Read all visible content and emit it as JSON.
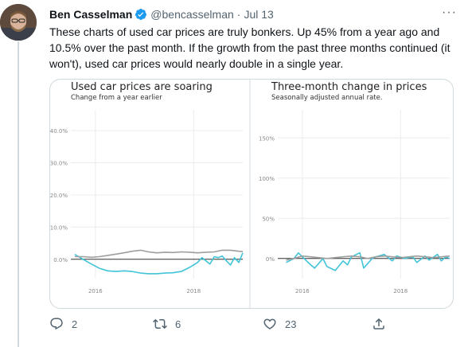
{
  "tweet": {
    "author_name": "Ben Casselman",
    "handle": "@bencasselman",
    "separator": "·",
    "time": "Jul 13",
    "text": "These charts of used car prices are truly bonkers. Up 45% from a year ago and 10.5% over the past month. If the growth from the past three months continued (it won't), used car prices would nearly double in a single year.",
    "more_label": "···"
  },
  "actions": {
    "reply_count": "2",
    "retweet_count": "6",
    "like_count": "23"
  },
  "colors": {
    "accent": "#1d9bf0",
    "series_primary": "#41c4d8",
    "series_baseline": "#9e9e9e",
    "text_muted": "#536471"
  },
  "icons": [
    "verified-badge-icon",
    "more-icon",
    "reply-icon",
    "retweet-icon",
    "like-icon",
    "share-icon"
  ],
  "chart_data": [
    {
      "type": "line",
      "title": "Used car prices are soaring",
      "subtitle": "Change from a year earlier",
      "y_tick_labels": [
        "40.0%",
        "30.0%",
        "20.0%",
        "10.0%",
        "0.0%"
      ],
      "x_tick_labels": [
        "2016",
        "2018"
      ],
      "xlim": [
        2015.5,
        2019.0
      ],
      "ylim": [
        -6,
        44
      ],
      "y_ticks": [
        40,
        30,
        20,
        10,
        0
      ],
      "x_ticks": [
        2016,
        2018
      ],
      "grid": true,
      "series": [
        {
          "color": "#41c4d8",
          "x": [
            2015.58,
            2015.75,
            2015.92,
            2016.08,
            2016.25,
            2016.42,
            2016.58,
            2016.75,
            2016.92,
            2017.08,
            2017.25,
            2017.42,
            2017.58,
            2017.75,
            2017.92,
            2018.08,
            2018.17,
            2018.25,
            2018.33,
            2018.42,
            2018.5,
            2018.58,
            2018.67,
            2018.75,
            2018.83,
            2018.92,
            2019.0
          ],
          "y": [
            1.5,
            0.0,
            -1.5,
            -2.8,
            -3.6,
            -3.8,
            -3.6,
            -3.8,
            -4.3,
            -4.5,
            -4.5,
            -4.3,
            -4.2,
            -3.8,
            -2.5,
            -1.0,
            0.5,
            -0.5,
            -1.5,
            0.8,
            0.5,
            1.0,
            -0.5,
            -1.8,
            0.5,
            -1.0,
            2.0
          ]
        },
        {
          "color": "#9e9e9e",
          "x": [
            2015.58,
            2015.75,
            2015.92,
            2016.08,
            2016.25,
            2016.42,
            2016.58,
            2016.75,
            2016.92,
            2017.08,
            2017.25,
            2017.42,
            2017.58,
            2017.75,
            2017.92,
            2018.08,
            2018.25,
            2018.42,
            2018.58,
            2018.75,
            2018.92,
            2019.0
          ],
          "y": [
            0.8,
            0.8,
            0.6,
            0.8,
            1.2,
            1.6,
            2.0,
            2.5,
            2.8,
            2.3,
            2.0,
            2.2,
            2.1,
            2.3,
            2.2,
            2.0,
            2.2,
            2.3,
            2.8,
            2.8,
            2.5,
            2.4
          ]
        }
      ]
    },
    {
      "type": "line",
      "title": "Three-month change in prices",
      "subtitle": "Seasonally adjusted annual rate.",
      "y_tick_labels": [
        "150%",
        "100%",
        "50%",
        "0%"
      ],
      "x_tick_labels": [
        "2016",
        "2018"
      ],
      "xlim": [
        2015.5,
        2019.0
      ],
      "ylim": [
        -25,
        175
      ],
      "y_ticks": [
        150,
        100,
        50,
        0
      ],
      "x_ticks": [
        2016,
        2018
      ],
      "grid": true,
      "series": [
        {
          "color": "#41c4d8",
          "x": [
            2015.67,
            2015.83,
            2015.92,
            2016.0,
            2016.17,
            2016.25,
            2016.42,
            2016.5,
            2016.67,
            2016.83,
            2016.92,
            2017.0,
            2017.17,
            2017.25,
            2017.42,
            2017.5,
            2017.67,
            2017.83,
            2017.92,
            2018.08,
            2018.25,
            2018.33,
            2018.5,
            2018.58,
            2018.75,
            2018.83,
            2018.92,
            2019.0
          ],
          "y": [
            -5,
            0,
            7,
            2,
            -8,
            -12,
            0,
            -10,
            -15,
            -3,
            -8,
            2,
            7,
            -12,
            0,
            2,
            5,
            -3,
            3,
            0,
            2,
            -5,
            3,
            -2,
            5,
            -3,
            2,
            0
          ]
        },
        {
          "color": "#9e9e9e",
          "x": [
            2015.67,
            2015.83,
            2016.0,
            2016.17,
            2016.33,
            2016.5,
            2016.67,
            2016.83,
            2017.0,
            2017.17,
            2017.33,
            2017.5,
            2017.67,
            2017.83,
            2018.0,
            2018.17,
            2018.33,
            2018.5,
            2018.67,
            2018.83,
            2019.0
          ],
          "y": [
            -2,
            0,
            3,
            2,
            1,
            0,
            1,
            2,
            3,
            2,
            0,
            2,
            3,
            2,
            1,
            2,
            3,
            2,
            1,
            2,
            3
          ]
        }
      ]
    }
  ]
}
